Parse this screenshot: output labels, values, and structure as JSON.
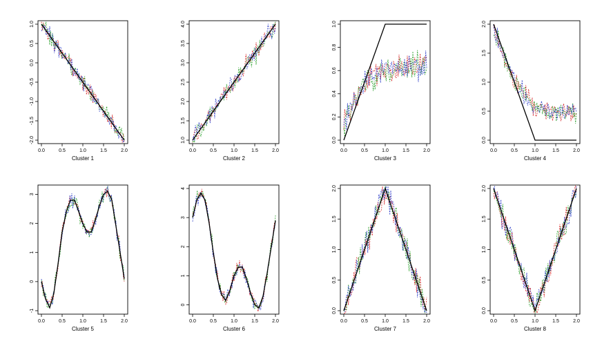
{
  "colors": {
    "series": [
      "#d62728",
      "#2ca02c",
      "#3040c8"
    ],
    "truth": "#000000"
  },
  "chart_data": [
    {
      "type": "line",
      "xlabel": "Cluster 1",
      "xlim": [
        0,
        2
      ],
      "ylim": [
        -2,
        1
      ],
      "xticks": [
        "0.0",
        "0.5",
        "1.0",
        "1.5",
        "2.0"
      ],
      "yticks": [
        "-2.0",
        "-1.5",
        "-1.0",
        "-0.5",
        "0.0",
        "0.5",
        "1.0"
      ],
      "truth": {
        "x": [
          0,
          2
        ],
        "y": [
          1,
          -2
        ]
      },
      "series": [
        {
          "id": "red"
        },
        {
          "id": "green"
        },
        {
          "id": "blue"
        }
      ],
      "noise": 0.22
    },
    {
      "type": "line",
      "xlabel": "Cluster 2",
      "xlim": [
        0,
        2
      ],
      "ylim": [
        1,
        4
      ],
      "xticks": [
        "0.0",
        "0.5",
        "1.0",
        "1.5",
        "2.0"
      ],
      "yticks": [
        "1.0",
        "1.5",
        "2.0",
        "2.5",
        "3.0",
        "3.5",
        "4.0"
      ],
      "truth": {
        "x": [
          0,
          2
        ],
        "y": [
          1,
          4
        ]
      },
      "series": [
        {
          "id": "red"
        },
        {
          "id": "green"
        },
        {
          "id": "blue"
        }
      ],
      "noise": 0.22
    },
    {
      "type": "line",
      "xlabel": "Cluster 3",
      "xlim": [
        0,
        2
      ],
      "ylim": [
        0,
        1
      ],
      "xticks": [
        "0.0",
        "0.5",
        "1.0",
        "1.5",
        "2.0"
      ],
      "yticks": [
        "0.0",
        "0.2",
        "0.4",
        "0.6",
        "0.8",
        "1.0"
      ],
      "truth": {
        "x": [
          0,
          1,
          2
        ],
        "y": [
          0,
          1,
          1
        ]
      },
      "series_trend": {
        "x": [
          0,
          0.5,
          1,
          2
        ],
        "y": [
          0.15,
          0.5,
          0.62,
          0.64
        ]
      },
      "series": [
        {
          "id": "red"
        },
        {
          "id": "green"
        },
        {
          "id": "blue"
        }
      ],
      "noise": 0.11
    },
    {
      "type": "line",
      "xlabel": "Cluster 4",
      "xlim": [
        0,
        2
      ],
      "ylim": [
        0,
        2
      ],
      "xticks": [
        "0.0",
        "0.5",
        "1.0",
        "1.5",
        "2.0"
      ],
      "yticks": [
        "0.0",
        "0.5",
        "1.0",
        "1.5",
        "2.0"
      ],
      "truth": {
        "x": [
          0,
          1,
          2
        ],
        "y": [
          2,
          0,
          0
        ]
      },
      "series_trend": {
        "x": [
          0,
          0.5,
          1,
          2
        ],
        "y": [
          1.9,
          1.0,
          0.55,
          0.45
        ]
      },
      "series": [
        {
          "id": "red"
        },
        {
          "id": "green"
        },
        {
          "id": "blue"
        }
      ],
      "noise": 0.16
    },
    {
      "type": "line",
      "xlabel": "Cluster 5",
      "xlim": [
        0,
        2
      ],
      "ylim": [
        -1,
        3.2
      ],
      "xticks": [
        "0.0",
        "0.5",
        "1.0",
        "1.5",
        "2.0"
      ],
      "yticks": [
        "-1",
        "0",
        "1",
        "2",
        "3"
      ],
      "truth": {
        "x": [
          0,
          0.1,
          0.2,
          0.3,
          0.4,
          0.5,
          0.6,
          0.7,
          0.8,
          0.9,
          1.0,
          1.1,
          1.2,
          1.3,
          1.4,
          1.5,
          1.6,
          1.7,
          1.8,
          1.9,
          2.0
        ],
        "y": [
          0,
          -0.6,
          -0.9,
          -0.4,
          0.6,
          1.7,
          2.4,
          2.8,
          2.8,
          2.4,
          2.0,
          1.7,
          1.7,
          2.1,
          2.6,
          3.0,
          3.1,
          2.8,
          1.9,
          1.0,
          0.1
        ]
      },
      "series": [
        {
          "id": "red"
        },
        {
          "id": "green"
        },
        {
          "id": "blue"
        }
      ],
      "noise": 0.22
    },
    {
      "type": "line",
      "xlabel": "Cluster 6",
      "xlim": [
        0,
        2
      ],
      "ylim": [
        -0.2,
        4
      ],
      "xticks": [
        "0.0",
        "0.5",
        "1.0",
        "1.5",
        "2.0"
      ],
      "yticks": [
        "0",
        "1",
        "2",
        "3",
        "4"
      ],
      "truth": {
        "x": [
          0,
          0.1,
          0.2,
          0.3,
          0.4,
          0.5,
          0.6,
          0.7,
          0.8,
          0.9,
          1.0,
          1.1,
          1.2,
          1.3,
          1.4,
          1.5,
          1.6,
          1.7,
          1.8,
          1.9,
          2.0
        ],
        "y": [
          3.0,
          3.6,
          3.85,
          3.6,
          2.8,
          1.8,
          0.9,
          0.35,
          0.15,
          0.5,
          1.0,
          1.3,
          1.3,
          0.9,
          0.4,
          0.0,
          -0.1,
          0.3,
          1.1,
          2.0,
          2.9
        ]
      },
      "series": [
        {
          "id": "red"
        },
        {
          "id": "green"
        },
        {
          "id": "blue"
        }
      ],
      "noise": 0.22
    },
    {
      "type": "line",
      "xlabel": "Cluster 7",
      "xlim": [
        0,
        2
      ],
      "ylim": [
        0,
        2
      ],
      "xticks": [
        "0.0",
        "0.5",
        "1.0",
        "1.5",
        "2.0"
      ],
      "yticks": [
        "0.0",
        "0.5",
        "1.0",
        "1.5",
        "2.0"
      ],
      "truth": {
        "x": [
          0,
          1,
          2
        ],
        "y": [
          0,
          2,
          0
        ]
      },
      "series": [
        {
          "id": "red"
        },
        {
          "id": "green"
        },
        {
          "id": "blue"
        }
      ],
      "noise": 0.2
    },
    {
      "type": "line",
      "xlabel": "Cluster 8",
      "xlim": [
        0,
        2
      ],
      "ylim": [
        0,
        2
      ],
      "xticks": [
        "0.0",
        "0.5",
        "1.0",
        "1.5",
        "2.0"
      ],
      "yticks": [
        "0.0",
        "0.5",
        "1.0",
        "1.5",
        "2.0"
      ],
      "truth": {
        "x": [
          0,
          1,
          2
        ],
        "y": [
          2,
          0,
          2
        ]
      },
      "series": [
        {
          "id": "red"
        },
        {
          "id": "green"
        },
        {
          "id": "blue"
        }
      ],
      "noise": 0.2
    }
  ]
}
